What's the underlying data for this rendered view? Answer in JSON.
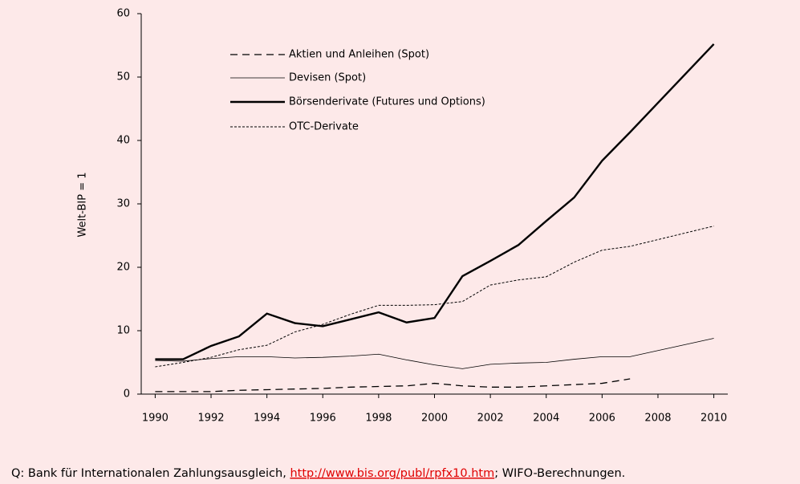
{
  "chart_data": {
    "type": "line",
    "y_label": "Welt-BIP = 1",
    "x": [
      1990,
      1991,
      1992,
      1993,
      1994,
      1995,
      1996,
      1997,
      1998,
      1999,
      2000,
      2001,
      2002,
      2003,
      2004,
      2005,
      2006,
      2007,
      2010
    ],
    "series": [
      {
        "name": "Aktien und Anleihen (Spot)",
        "color": "#000000",
        "width": 1.3,
        "dash": "9,6",
        "values": [
          0.4,
          0.4,
          0.4,
          0.6,
          0.7,
          0.8,
          0.9,
          1.1,
          1.2,
          1.3,
          1.7,
          1.3,
          1.1,
          1.1,
          1.3,
          1.5,
          1.7,
          2.4,
          null
        ]
      },
      {
        "name": "Devisen (Spot)",
        "color": "#000000",
        "width": 0.8,
        "dash": "",
        "values": [
          5.3,
          5.2,
          5.6,
          5.9,
          5.9,
          5.7,
          5.8,
          6.0,
          6.3,
          5.4,
          4.6,
          4.0,
          4.7,
          4.9,
          5.0,
          5.5,
          5.9,
          5.9,
          8.8
        ]
      },
      {
        "name": "Börsenderivate (Futures und Options)",
        "color": "#000000",
        "width": 2.4,
        "dash": "",
        "values": [
          5.5,
          5.5,
          7.6,
          9.1,
          12.7,
          11.2,
          10.7,
          11.8,
          12.9,
          11.3,
          12.0,
          18.6,
          21.0,
          23.5,
          27.3,
          31.0,
          36.8,
          41.3,
          55.2
        ]
      },
      {
        "name": "OTC-Derivate",
        "color": "#000000",
        "width": 1,
        "dash": "3,2",
        "values": [
          4.3,
          5.0,
          5.8,
          7.0,
          7.7,
          9.8,
          11.0,
          12.6,
          14.0,
          14.0,
          14.1,
          14.6,
          17.2,
          18.0,
          18.5,
          20.8,
          22.7,
          23.3,
          26.5
        ]
      }
    ],
    "xlim": [
      1989.5,
      2010.5
    ],
    "xticks": [
      1990,
      1992,
      1994,
      1996,
      1998,
      2000,
      2002,
      2004,
      2006,
      2008,
      2010
    ],
    "ylim": [
      0,
      60
    ],
    "yticks": [
      0,
      10,
      20,
      30,
      40,
      50,
      60
    ],
    "background": "#fde9e9"
  },
  "source": {
    "prefix": "Q: Bank für Internationalen Zahlungsausgleich, ",
    "link": "http://www.bis.org/publ/rpfx10.htm",
    "suffix": "; WIFO-Berechnungen."
  }
}
